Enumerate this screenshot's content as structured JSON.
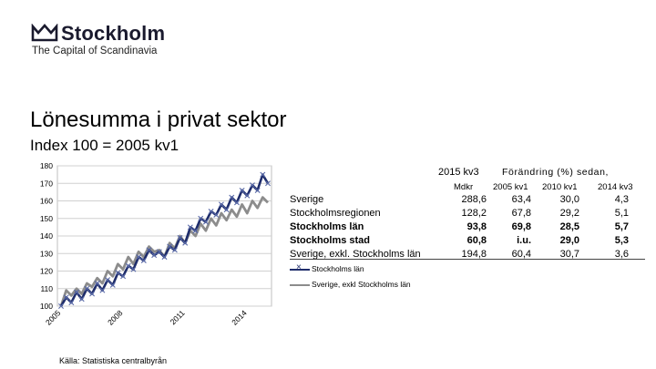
{
  "brand": {
    "name": "Stockholm",
    "tagline": "The Capital of Scandinavia",
    "logo_icon": "crown-icon"
  },
  "slide": {
    "title": "Lönesumma i privat sektor",
    "subtitle": "Index 100 = 2005 kv1",
    "source": "Källa: Statistiska centralbyrån"
  },
  "colors": {
    "series1": "#1f2d6b",
    "series2": "#8c8c8c",
    "grid": "#d0d0d0",
    "plot_bg": "#ffffff"
  },
  "chart_data": {
    "type": "line",
    "x_tick_labels": [
      "2005",
      "2008",
      "2011",
      "2014"
    ],
    "ylim": [
      100,
      180
    ],
    "y_ticks": [
      100,
      110,
      120,
      130,
      140,
      150,
      160,
      170,
      180
    ],
    "grid": true,
    "legend": "below-right",
    "series": [
      {
        "name": "Stockholms län",
        "marker": "x",
        "values": [
          100,
          105,
          102,
          108,
          104,
          110,
          107,
          113,
          109,
          115,
          112,
          119,
          117,
          123,
          121,
          128,
          126,
          132,
          129,
          131,
          128,
          134,
          132,
          139,
          136,
          145,
          143,
          150,
          148,
          154,
          152,
          158,
          155,
          162,
          159,
          166,
          163,
          169,
          166,
          175,
          170
        ]
      },
      {
        "name": "Sverige, exkl Stockholms län",
        "marker": "none",
        "values": [
          100,
          109,
          106,
          110,
          107,
          113,
          111,
          116,
          113,
          120,
          117,
          124,
          121,
          128,
          124,
          131,
          128,
          134,
          131,
          132,
          128,
          136,
          133,
          140,
          136,
          143,
          140,
          147,
          143,
          150,
          146,
          153,
          149,
          155,
          151,
          158,
          153,
          160,
          156,
          162,
          159
        ]
      }
    ]
  },
  "table": {
    "header_period": "2015 kv3",
    "header_change": "Förändring (%) sedan,",
    "col_headers": [
      "Mdkr",
      "2005 kv1",
      "2010 kv1",
      "2014 kv3"
    ],
    "rows": [
      {
        "label": "Sverige",
        "bold": false,
        "values": [
          "288,6",
          "63,4",
          "30,0",
          "4,3"
        ]
      },
      {
        "label": "Stockholmsregionen",
        "bold": false,
        "values": [
          "128,2",
          "67,8",
          "29,2",
          "5,1"
        ]
      },
      {
        "label": "Stockholms län",
        "bold": true,
        "values": [
          "93,8",
          "69,8",
          "28,5",
          "5,7"
        ]
      },
      {
        "label": "Stockholms stad",
        "bold": true,
        "values": [
          "60,8",
          "i.u.",
          "29,0",
          "5,3"
        ]
      },
      {
        "label": "Sverige, exkl. Stockholms län",
        "bold": false,
        "values": [
          "194,8",
          "60,4",
          "30,7",
          "3,6"
        ]
      }
    ]
  },
  "legend": {
    "items": [
      "Stockholms län",
      "Sverige, exkl Stockholms län"
    ]
  }
}
